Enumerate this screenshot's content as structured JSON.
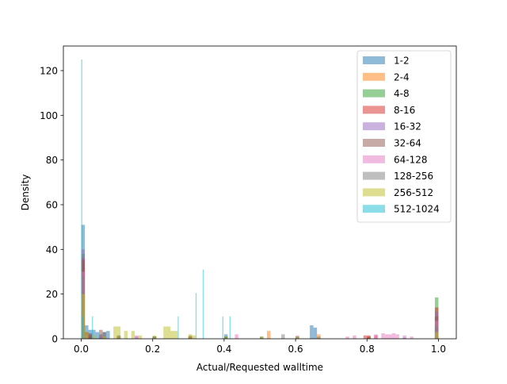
{
  "chart_data": {
    "type": "histogram",
    "title": "",
    "xlabel": "Actual/Requested walltime",
    "ylabel": "Density",
    "xlim": [
      -0.05,
      1.05
    ],
    "ylim": [
      0,
      131
    ],
    "xticks": [
      0.0,
      0.2,
      0.4,
      0.6,
      0.8,
      1.0
    ],
    "xtick_labels": [
      "0.0",
      "0.2",
      "0.4",
      "0.6",
      "0.8",
      "1.0"
    ],
    "yticks": [
      0,
      20,
      40,
      60,
      80,
      100,
      120
    ],
    "ytick_labels": [
      "0",
      "20",
      "40",
      "60",
      "80",
      "100",
      "120"
    ],
    "grid": false,
    "legend_position": "top-right",
    "bar_alpha": 0.5,
    "series": [
      {
        "name": "1-2",
        "color": "#1f77b4",
        "bin_width": 0.01,
        "bins": [
          [
            0.0,
            51
          ],
          [
            0.01,
            6
          ],
          [
            0.02,
            4
          ],
          [
            0.03,
            4
          ],
          [
            0.04,
            3
          ],
          [
            0.05,
            2
          ],
          [
            0.06,
            3
          ],
          [
            0.07,
            3.5
          ],
          [
            0.1,
            1.5
          ],
          [
            0.2,
            1
          ],
          [
            0.3,
            1
          ],
          [
            0.4,
            2
          ],
          [
            0.5,
            1
          ],
          [
            0.6,
            1
          ],
          [
            0.64,
            6
          ],
          [
            0.65,
            5
          ],
          [
            0.66,
            1
          ],
          [
            0.8,
            1
          ],
          [
            0.9,
            0.5
          ],
          [
            0.99,
            5
          ]
        ]
      },
      {
        "name": "2-4",
        "color": "#ff7f0e",
        "bin_width": 0.01,
        "bins": [
          [
            0.0,
            34
          ],
          [
            0.01,
            3
          ],
          [
            0.02,
            2
          ],
          [
            0.1,
            1
          ],
          [
            0.3,
            1
          ],
          [
            0.4,
            1
          ],
          [
            0.52,
            3.5
          ],
          [
            0.66,
            2
          ],
          [
            0.8,
            1
          ],
          [
            0.99,
            4
          ]
        ]
      },
      {
        "name": "4-8",
        "color": "#2ca02c",
        "bin_width": 0.01,
        "bins": [
          [
            0.0,
            38
          ],
          [
            0.01,
            2
          ],
          [
            0.02,
            1.5
          ],
          [
            0.05,
            1
          ],
          [
            0.2,
            1
          ],
          [
            0.4,
            1
          ],
          [
            0.6,
            0.5
          ],
          [
            0.8,
            0.5
          ],
          [
            0.99,
            18.5
          ]
        ]
      },
      {
        "name": "8-16",
        "color": "#d62728",
        "bin_width": 0.01,
        "bins": [
          [
            0.0,
            36
          ],
          [
            0.01,
            2
          ],
          [
            0.02,
            1.5
          ],
          [
            0.3,
            0.5
          ],
          [
            0.5,
            0.5
          ],
          [
            0.6,
            0.5
          ],
          [
            0.79,
            1.5
          ],
          [
            0.8,
            1.5
          ],
          [
            0.82,
            1.5
          ],
          [
            0.99,
            14
          ]
        ]
      },
      {
        "name": "16-32",
        "color": "#9467bd",
        "bin_width": 0.01,
        "bins": [
          [
            0.0,
            40
          ],
          [
            0.01,
            3
          ],
          [
            0.02,
            2
          ],
          [
            0.05,
            1
          ],
          [
            0.1,
            1.5
          ],
          [
            0.15,
            1
          ],
          [
            0.2,
            1
          ],
          [
            0.3,
            1
          ],
          [
            0.5,
            0.5
          ],
          [
            0.99,
            12
          ]
        ]
      },
      {
        "name": "32-64",
        "color": "#8c564b",
        "bin_width": 0.01,
        "bins": [
          [
            0.0,
            35
          ],
          [
            0.01,
            3
          ],
          [
            0.02,
            2.5
          ],
          [
            0.05,
            4
          ],
          [
            0.06,
            3
          ],
          [
            0.1,
            1
          ],
          [
            0.2,
            1
          ],
          [
            0.3,
            1
          ],
          [
            0.99,
            10
          ]
        ]
      },
      {
        "name": "64-128",
        "color": "#e377c2",
        "bin_width": 0.01,
        "bins": [
          [
            0.0,
            30
          ],
          [
            0.01,
            2
          ],
          [
            0.05,
            1
          ],
          [
            0.15,
            1.5
          ],
          [
            0.43,
            2
          ],
          [
            0.6,
            1.5
          ],
          [
            0.74,
            1
          ],
          [
            0.76,
            1.5
          ],
          [
            0.82,
            2
          ],
          [
            0.84,
            2.5
          ],
          [
            0.85,
            2
          ],
          [
            0.86,
            2
          ],
          [
            0.87,
            2.5
          ],
          [
            0.88,
            2
          ],
          [
            0.9,
            1.5
          ],
          [
            0.92,
            1
          ],
          [
            0.99,
            8
          ]
        ]
      },
      {
        "name": "128-256",
        "color": "#7f7f7f",
        "bin_width": 0.01,
        "bins": [
          [
            0.0,
            28
          ],
          [
            0.01,
            2
          ],
          [
            0.05,
            1
          ],
          [
            0.1,
            1
          ],
          [
            0.2,
            1
          ],
          [
            0.3,
            1.5
          ],
          [
            0.56,
            2
          ],
          [
            0.6,
            1
          ],
          [
            0.99,
            6
          ]
        ]
      },
      {
        "name": "256-512",
        "color": "#bcbd22",
        "bin_width": 0.01,
        "bins": [
          [
            0.0,
            20
          ],
          [
            0.01,
            3
          ],
          [
            0.03,
            1.5
          ],
          [
            0.06,
            1
          ],
          [
            0.09,
            5.5
          ],
          [
            0.1,
            5.5
          ],
          [
            0.12,
            3.5
          ],
          [
            0.14,
            3.5
          ],
          [
            0.16,
            1.5
          ],
          [
            0.2,
            1.5
          ],
          [
            0.23,
            5.5
          ],
          [
            0.24,
            5.5
          ],
          [
            0.25,
            3.5
          ],
          [
            0.26,
            3.5
          ],
          [
            0.3,
            2
          ],
          [
            0.31,
            1.5
          ],
          [
            0.5,
            1
          ],
          [
            0.6,
            1
          ],
          [
            0.99,
            3
          ]
        ]
      },
      {
        "name": "512-1024",
        "color": "#17becf",
        "bin_width": 0.003,
        "bins": [
          [
            0.0,
            125
          ],
          [
            0.003,
            10
          ],
          [
            0.03,
            10
          ],
          [
            0.27,
            10
          ],
          [
            0.32,
            20.5
          ],
          [
            0.34,
            31
          ],
          [
            0.395,
            10
          ],
          [
            0.415,
            10
          ]
        ]
      }
    ]
  }
}
